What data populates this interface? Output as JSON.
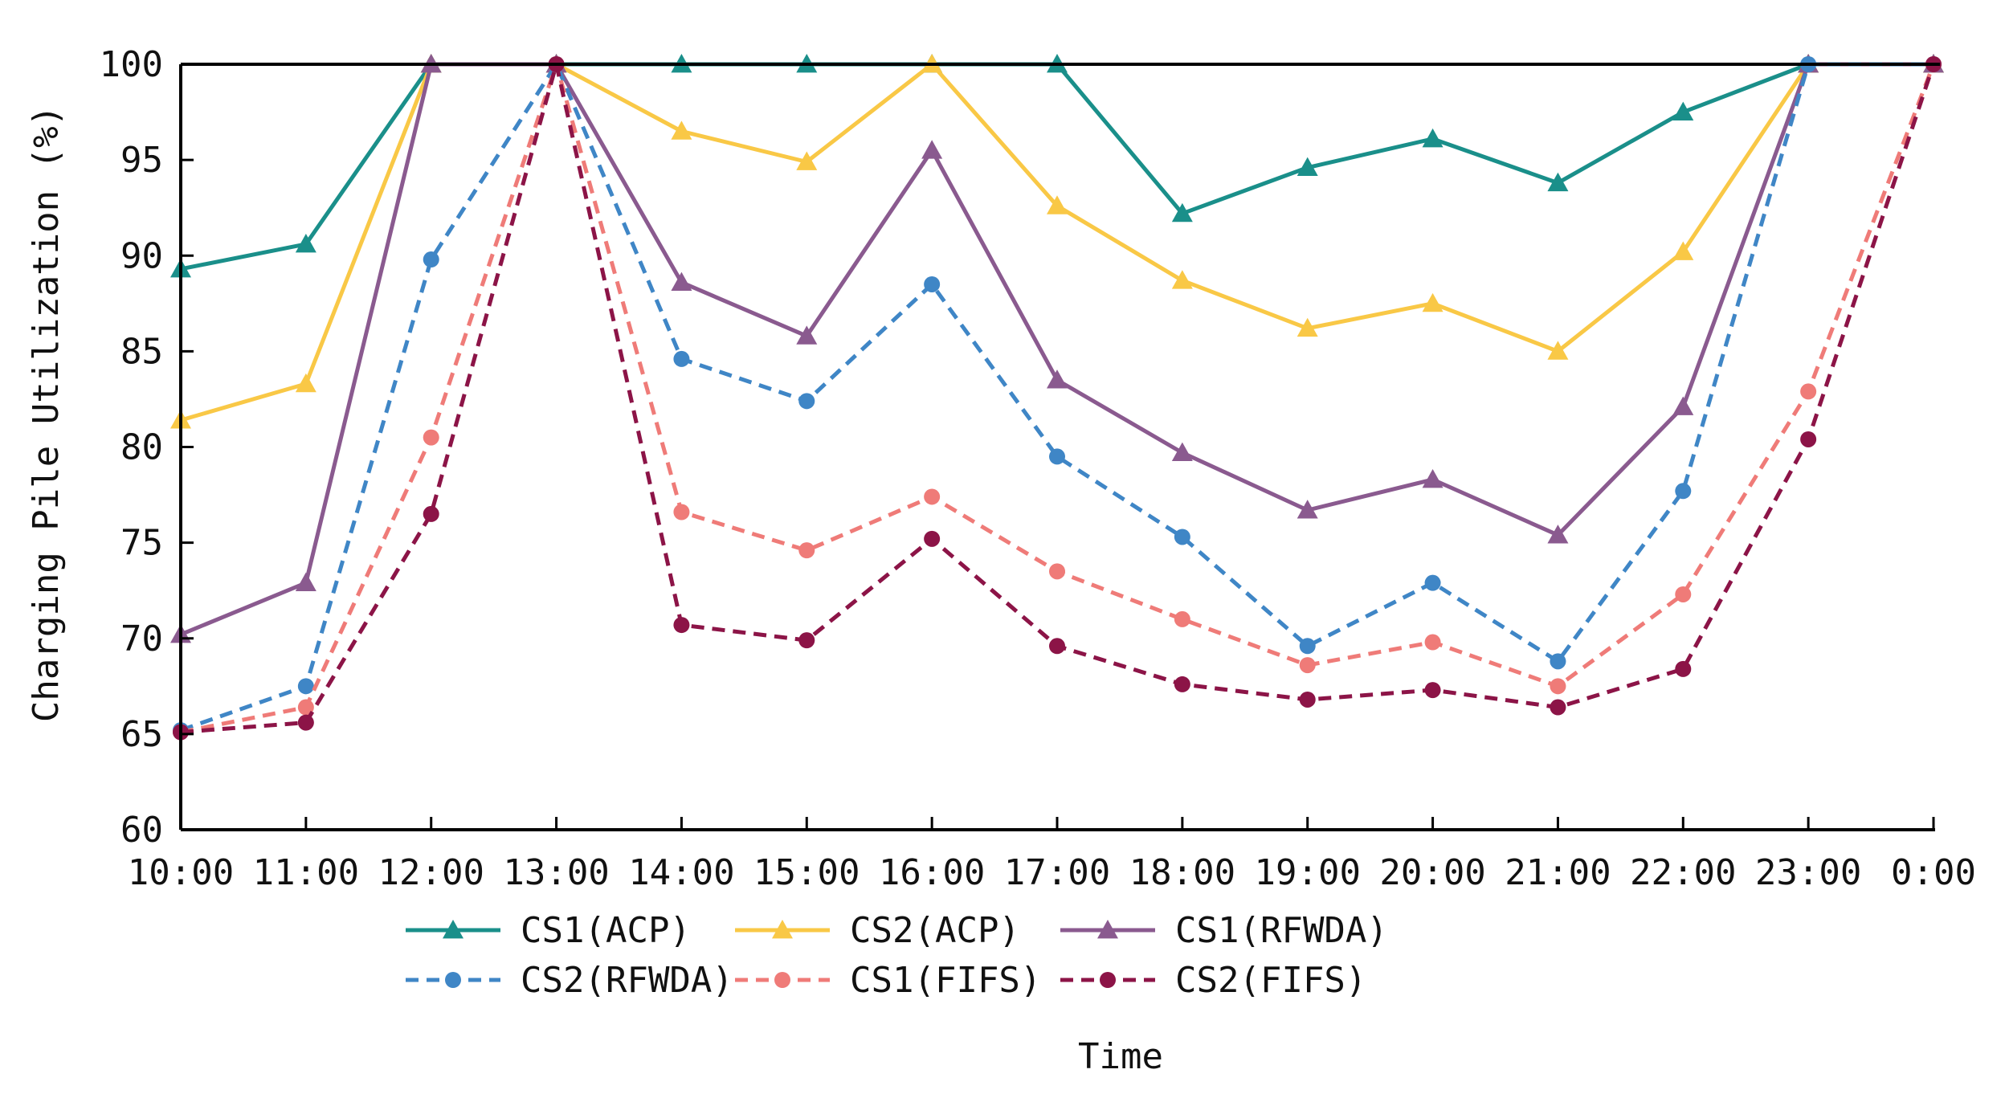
{
  "chart_data": {
    "type": "line",
    "title": "",
    "xlabel": "Time",
    "ylabel": "Charging Pile Utilization (%)",
    "ylim": [
      60,
      100
    ],
    "yticks": [
      "60",
      "65",
      "70",
      "75",
      "80",
      "85",
      "90",
      "95",
      "100"
    ],
    "categories": [
      "10:00",
      "11:00",
      "12:00",
      "13:00",
      "14:00",
      "15:00",
      "16:00",
      "17:00",
      "18:00",
      "19:00",
      "20:00",
      "21:00",
      "22:00",
      "23:00",
      "0:00"
    ],
    "grid": false,
    "legend_position": "bottom",
    "series": [
      {
        "name": "CS1(ACP)",
        "color": "#1a8f8a",
        "dashed": false,
        "marker": "triangle",
        "values": [
          89.3,
          90.6,
          100,
          100,
          100,
          100,
          100,
          100,
          92.2,
          94.6,
          96.1,
          93.8,
          97.5,
          100,
          100
        ]
      },
      {
        "name": "CS2(ACP)",
        "color": "#f9c846",
        "dashed": false,
        "marker": "triangle",
        "values": [
          81.4,
          83.3,
          100,
          100,
          96.5,
          94.9,
          100,
          92.6,
          88.7,
          86.2,
          87.5,
          85.0,
          90.2,
          100,
          100
        ]
      },
      {
        "name": "CS1(RFWDA)",
        "color": "#8a5a8f",
        "dashed": false,
        "marker": "triangle",
        "values": [
          70.2,
          72.9,
          100,
          100,
          88.6,
          85.8,
          95.5,
          83.5,
          79.7,
          76.7,
          78.3,
          75.4,
          82.1,
          100,
          100
        ]
      },
      {
        "name": "CS2(RFWDA)",
        "color": "#3f86c6",
        "dashed": true,
        "marker": "circle",
        "values": [
          65.2,
          67.5,
          89.8,
          100,
          84.6,
          82.4,
          88.5,
          79.5,
          75.3,
          69.6,
          72.9,
          68.8,
          77.7,
          100,
          100
        ]
      },
      {
        "name": "CS1(FIFS)",
        "color": "#ef7b78",
        "dashed": true,
        "marker": "circle",
        "values": [
          65.1,
          66.4,
          80.5,
          100,
          76.6,
          74.6,
          77.4,
          73.5,
          71.0,
          68.6,
          69.8,
          67.5,
          72.3,
          82.9,
          100
        ]
      },
      {
        "name": "CS2(FIFS)",
        "color": "#8c1447",
        "dashed": true,
        "marker": "circle",
        "values": [
          65.1,
          65.6,
          76.5,
          100,
          70.7,
          69.9,
          75.2,
          69.6,
          67.6,
          66.8,
          67.3,
          66.4,
          68.4,
          80.4,
          100
        ]
      }
    ]
  }
}
